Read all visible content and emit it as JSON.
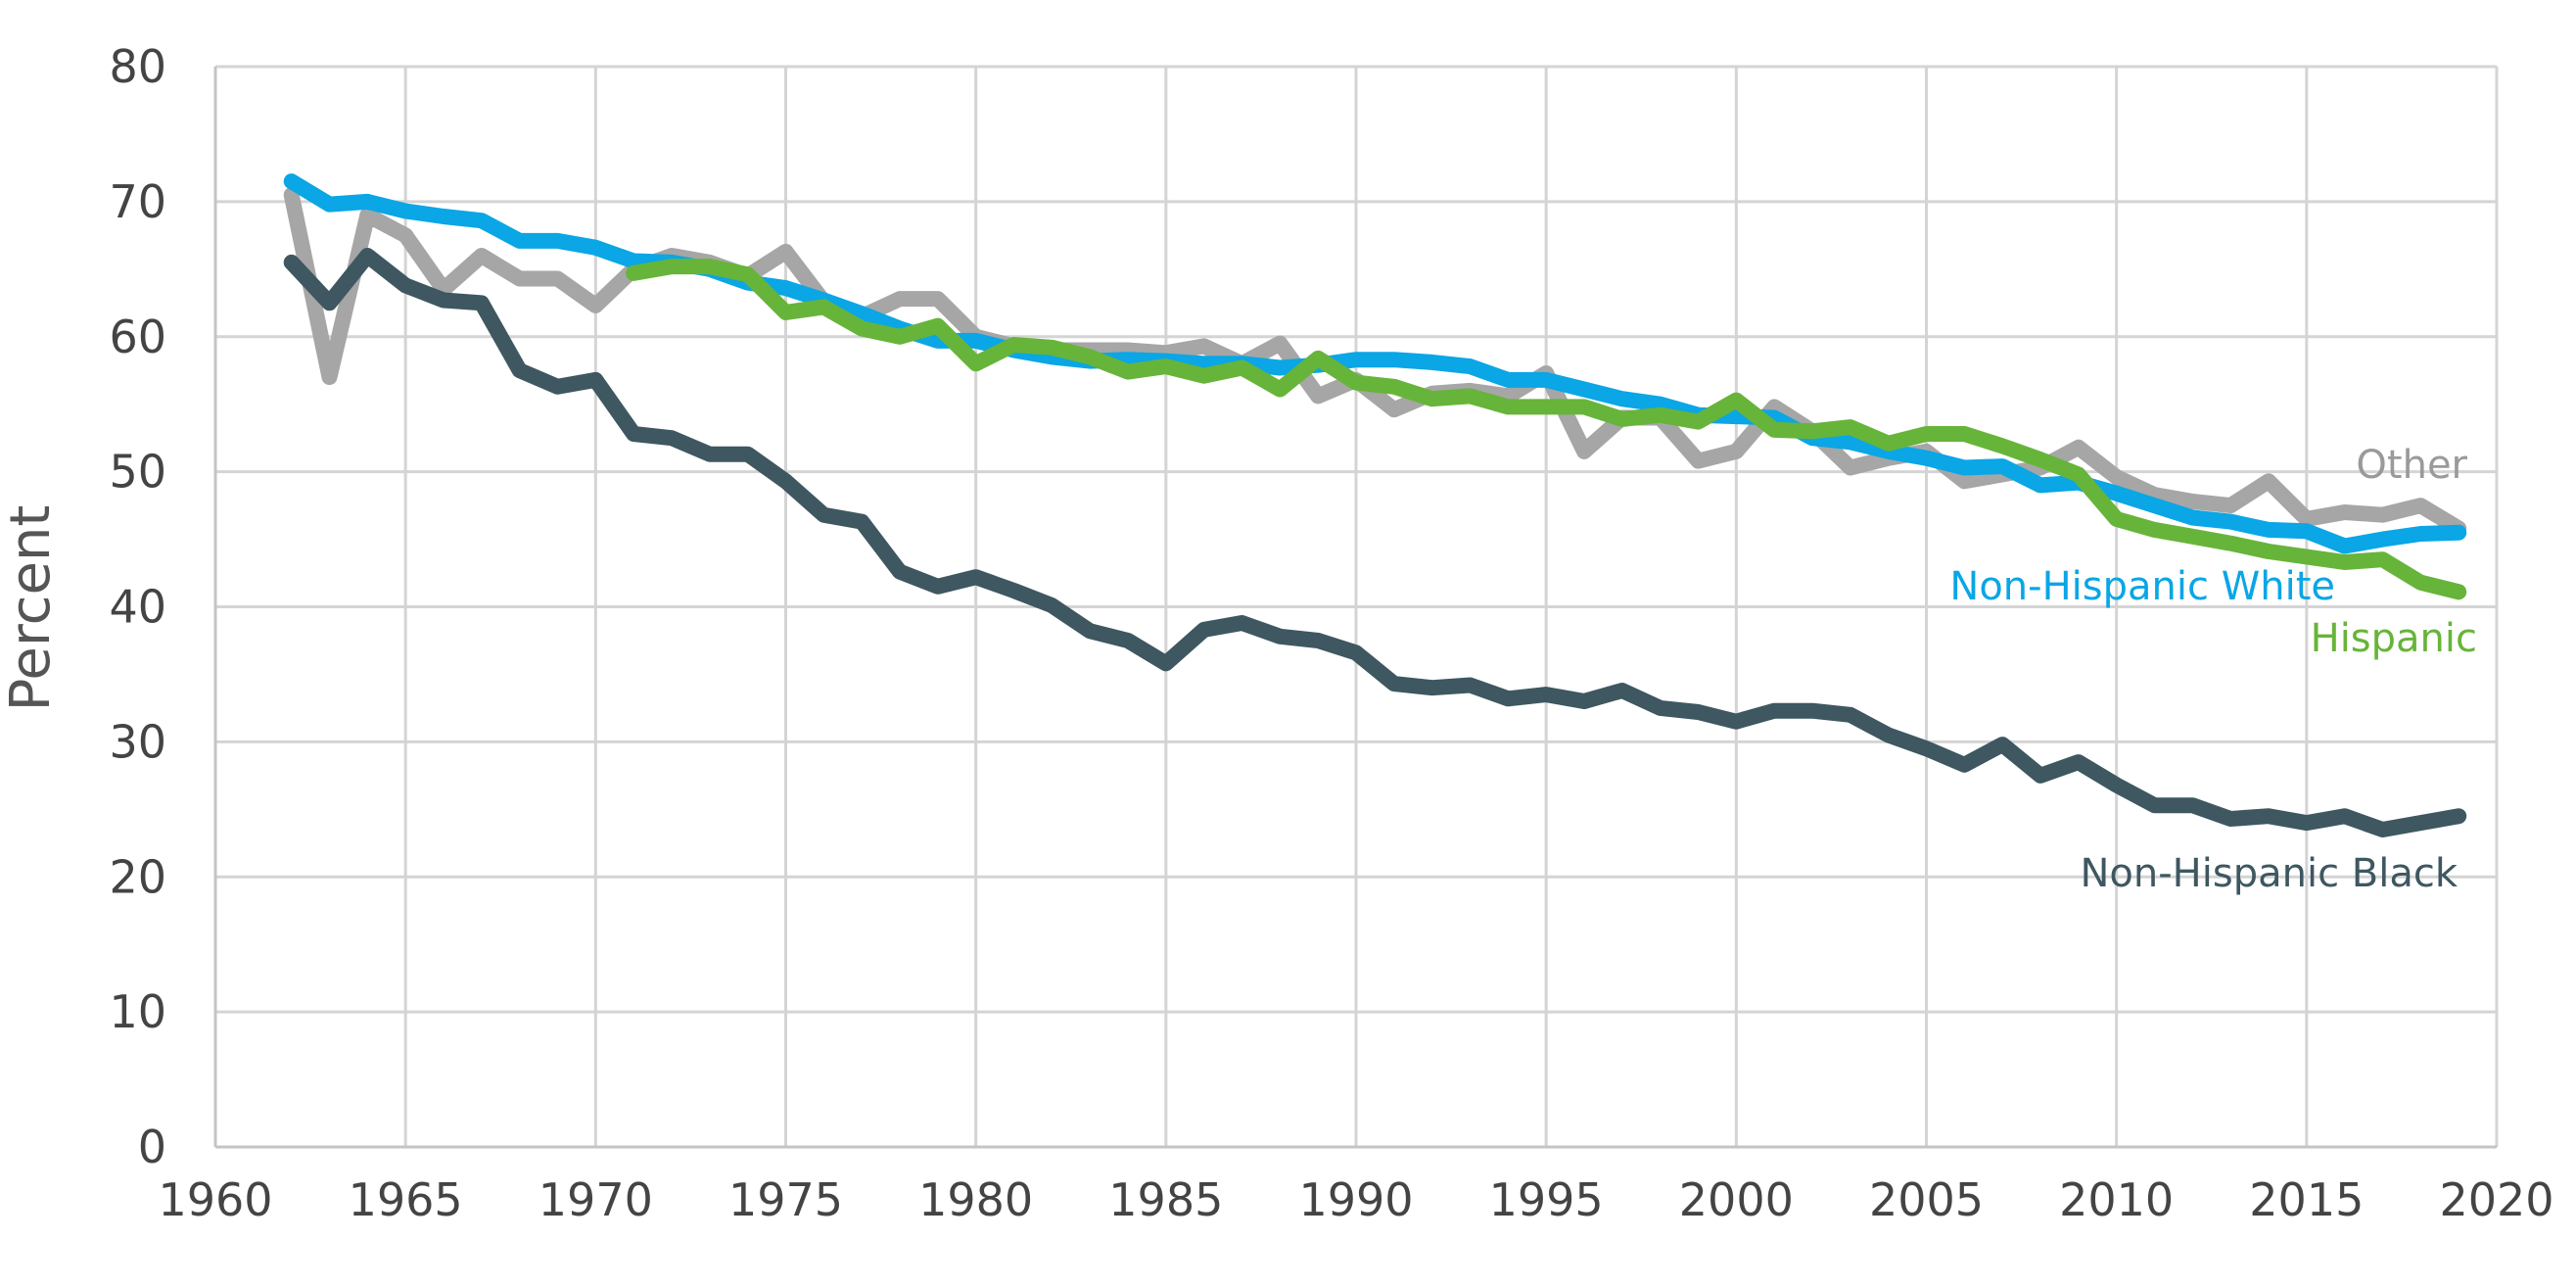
{
  "chart_data": {
    "type": "line",
    "title": "",
    "xlabel": "",
    "ylabel": "Percent",
    "xlim": [
      1960,
      2020
    ],
    "ylim": [
      0,
      80
    ],
    "x_ticks": [
      1960,
      1965,
      1970,
      1975,
      1980,
      1985,
      1990,
      1995,
      2000,
      2005,
      2010,
      2015,
      2020
    ],
    "y_ticks": [
      0,
      10,
      20,
      30,
      40,
      50,
      60,
      70,
      80
    ],
    "grid": true,
    "legend": "none (series labeled directly at right end)",
    "series": [
      {
        "name": "Other",
        "color": "#a6a6a6",
        "x": [
          1962,
          1963,
          1964,
          1965,
          1966,
          1967,
          1968,
          1969,
          1970,
          1971,
          1972,
          1973,
          1974,
          1975,
          1976,
          1977,
          1978,
          1979,
          1980,
          1981,
          1982,
          1983,
          1984,
          1985,
          1986,
          1987,
          1988,
          1989,
          1990,
          1991,
          1992,
          1993,
          1994,
          1995,
          1996,
          1997,
          1998,
          1999,
          2000,
          2001,
          2002,
          2003,
          2004,
          2005,
          2006,
          2007,
          2008,
          2009,
          2010,
          2011,
          2012,
          2013,
          2014,
          2015,
          2016,
          2017,
          2018,
          2019
        ],
        "values": [
          70.5,
          57,
          69,
          67.5,
          63.5,
          66,
          64.3,
          64.3,
          62.3,
          65,
          66,
          65.5,
          64.5,
          66.3,
          62.6,
          61.5,
          62.8,
          62.8,
          60,
          59.3,
          59,
          59,
          59,
          58.8,
          59.3,
          58,
          59.5,
          55.6,
          56.8,
          54.6,
          55.8,
          56,
          55.6,
          57.3,
          51.5,
          54,
          54,
          50.8,
          51.5,
          54.8,
          53,
          50.3,
          51,
          51.5,
          49.3,
          49.8,
          50.3,
          51.8,
          49.6,
          48.3,
          47.8,
          47.5,
          49.3,
          46.5,
          47,
          46.8,
          47.5,
          45.8
        ]
      },
      {
        "name": "Non-Hispanic White",
        "color": "#0aa6e5",
        "x": [
          1962,
          1963,
          1964,
          1965,
          1966,
          1967,
          1968,
          1969,
          1970,
          1971,
          1972,
          1973,
          1974,
          1975,
          1976,
          1977,
          1978,
          1979,
          1980,
          1981,
          1982,
          1983,
          1984,
          1985,
          1986,
          1987,
          1988,
          1989,
          1990,
          1991,
          1992,
          1993,
          1994,
          1995,
          1996,
          1997,
          1998,
          1999,
          2000,
          2001,
          2002,
          2003,
          2004,
          2005,
          2006,
          2007,
          2008,
          2009,
          2010,
          2011,
          2012,
          2013,
          2014,
          2015,
          2016,
          2017,
          2018,
          2019
        ],
        "values": [
          71.5,
          69.8,
          70,
          69.3,
          68.9,
          68.6,
          67.1,
          67.1,
          66.6,
          65.6,
          65.5,
          65,
          64,
          63.6,
          62.7,
          61.7,
          60.6,
          59.7,
          59.7,
          59,
          58.5,
          58.2,
          58.3,
          58.2,
          58,
          58,
          57.7,
          57.9,
          58.3,
          58.3,
          58.1,
          57.8,
          56.8,
          56.8,
          56.1,
          55.4,
          55,
          54.2,
          54.1,
          54,
          52.5,
          52.2,
          51.5,
          51,
          50.3,
          50.4,
          49,
          49.2,
          48.4,
          47.5,
          46.6,
          46.3,
          45.7,
          45.6,
          44.5,
          45,
          45.4,
          45.5
        ]
      },
      {
        "name": "Hispanic",
        "color": "#67b43a",
        "x": [
          1971,
          1972,
          1973,
          1974,
          1975,
          1976,
          1977,
          1978,
          1979,
          1980,
          1981,
          1982,
          1983,
          1984,
          1985,
          1986,
          1987,
          1988,
          1989,
          1990,
          1991,
          1992,
          1993,
          1994,
          1995,
          1996,
          1997,
          1998,
          1999,
          2000,
          2001,
          2002,
          2003,
          2004,
          2005,
          2006,
          2007,
          2008,
          2009,
          2010,
          2011,
          2012,
          2013,
          2014,
          2015,
          2016,
          2017,
          2018,
          2019
        ],
        "values": [
          64.7,
          65.2,
          65.2,
          64.6,
          61.8,
          62.2,
          60.6,
          60,
          60.8,
          58,
          59.4,
          59.2,
          58.5,
          57.4,
          57.8,
          57.1,
          57.7,
          56.1,
          58.4,
          56.6,
          56.3,
          55.4,
          55.6,
          54.8,
          54.8,
          54.8,
          53.9,
          54.2,
          53.7,
          55.3,
          53.1,
          53,
          53.3,
          52.1,
          52.8,
          52.8,
          51.9,
          50.9,
          49.8,
          46.5,
          45.7,
          45.2,
          44.7,
          44.1,
          43.7,
          43.3,
          43.5,
          41.8,
          41.1
        ]
      },
      {
        "name": "Non-Hispanic Black",
        "color": "#3e5761",
        "x": [
          1962,
          1963,
          1964,
          1965,
          1966,
          1967,
          1968,
          1969,
          1970,
          1971,
          1972,
          1973,
          1974,
          1975,
          1976,
          1977,
          1978,
          1979,
          1980,
          1981,
          1982,
          1983,
          1984,
          1985,
          1986,
          1987,
          1988,
          1989,
          1990,
          1991,
          1992,
          1993,
          1994,
          1995,
          1996,
          1997,
          1998,
          1999,
          2000,
          2001,
          2002,
          2003,
          2004,
          2005,
          2006,
          2007,
          2008,
          2009,
          2010,
          2011,
          2012,
          2013,
          2014,
          2015,
          2016,
          2017,
          2018,
          2019
        ],
        "values": [
          65.5,
          62.5,
          66,
          63.8,
          62.7,
          62.5,
          57.5,
          56.3,
          56.8,
          52.8,
          52.5,
          51.3,
          51.3,
          49.3,
          46.8,
          46.3,
          42.6,
          41.5,
          42.2,
          41.2,
          40.1,
          38.2,
          37.5,
          35.8,
          38.3,
          38.8,
          37.8,
          37.5,
          36.6,
          34.3,
          34,
          34.2,
          33.2,
          33.5,
          33,
          33.8,
          32.5,
          32.2,
          31.5,
          32.3,
          32.3,
          32,
          30.5,
          29.5,
          28.3,
          29.8,
          27.5,
          28.5,
          26.8,
          25.3,
          25.3,
          24.3,
          24.5,
          24,
          24.5,
          23.5,
          24,
          24.5
        ]
      }
    ],
    "series_labels": {
      "other": "Other",
      "white": "Non-Hispanic White",
      "hispanic": "Hispanic",
      "black": "Non-Hispanic Black"
    }
  }
}
